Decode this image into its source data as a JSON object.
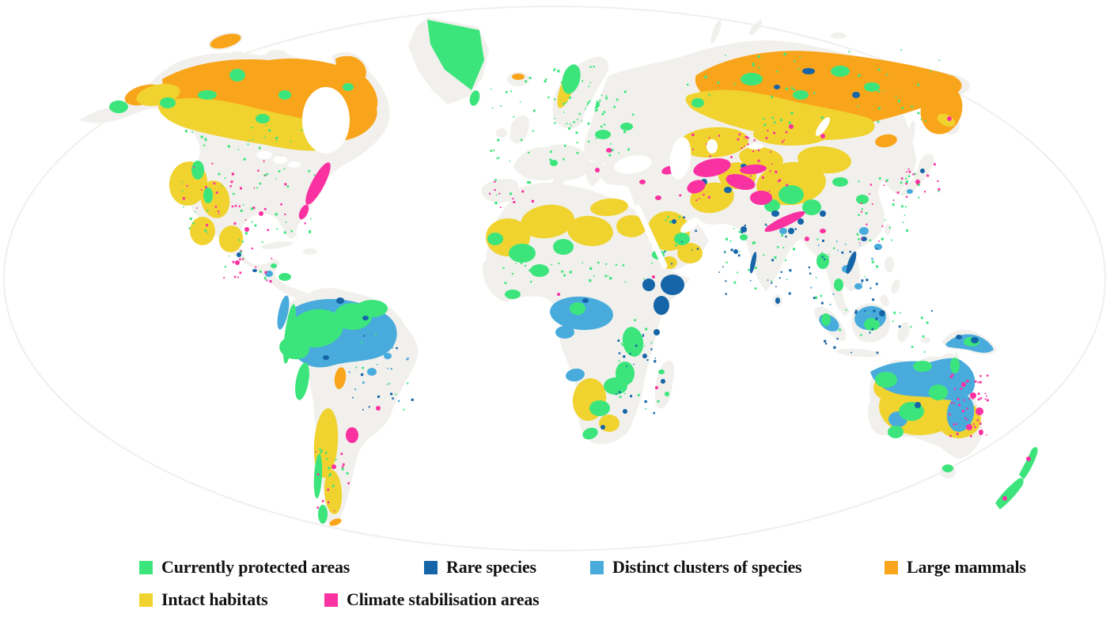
{
  "colors": {
    "green": "#3CE57C",
    "dark_blue": "#1565A8",
    "light_blue": "#48ABDC",
    "orange": "#F9A51B",
    "yellow": "#F0D32F",
    "pink": "#FA31A1",
    "land": "#F1F0EC",
    "land_edge": "#EDEDEB",
    "ocean": "#FFFFFF",
    "text": "#121212"
  },
  "legend": {
    "items": [
      {
        "label": "Currently protected areas",
        "color": "#3CE57C"
      },
      {
        "label": "Rare species",
        "color": "#1565A8"
      },
      {
        "label": "Distinct clusters of species",
        "color": "#48ABDC"
      },
      {
        "label": "Large mammals",
        "color": "#F9A51B"
      },
      {
        "label": "Intact habitats",
        "color": "#F0D32F"
      },
      {
        "label": "Climate stabilisation areas",
        "color": "#FA31A1"
      }
    ]
  }
}
